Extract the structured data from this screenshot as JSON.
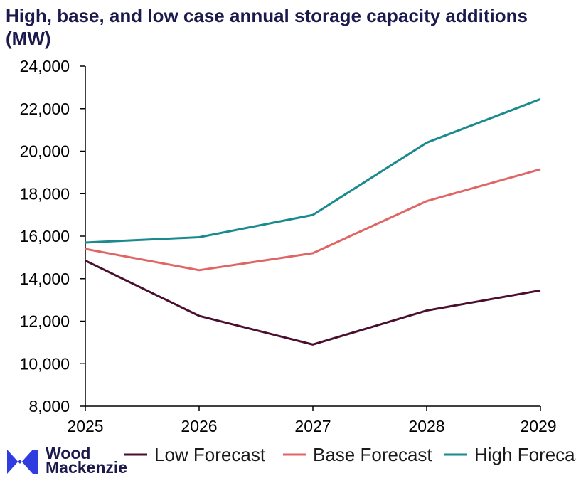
{
  "chart_data": {
    "type": "line",
    "title": "High, base, and low case annual storage capacity additions (MW)",
    "categories": [
      "2025",
      "2026",
      "2027",
      "2028",
      "2029"
    ],
    "ylim": [
      8000,
      24000
    ],
    "yticks": [
      8000,
      10000,
      12000,
      14000,
      16000,
      18000,
      20000,
      22000,
      24000
    ],
    "ytick_labels": [
      "8,000",
      "10,000",
      "12,000",
      "14,000",
      "16,000",
      "18,000",
      "20,000",
      "22,000",
      "24,000"
    ],
    "xlabel": "",
    "ylabel": "",
    "grid": false,
    "legend_position": "bottom",
    "series": [
      {
        "name": "Low Forecast",
        "color": "#4a0f2e",
        "values": [
          14850,
          12250,
          10900,
          12500,
          13450
        ]
      },
      {
        "name": "Base Forecast",
        "color": "#e06666",
        "values": [
          15400,
          14400,
          15200,
          17650,
          19150
        ]
      },
      {
        "name": "High Forecast",
        "color": "#1a8a8e",
        "values": [
          15700,
          15950,
          17000,
          20400,
          22450
        ]
      }
    ]
  },
  "logo": {
    "line1": "Wood",
    "line2": "Mackenzie",
    "color": "#2f3de0",
    "icon": "wood-mackenzie-logo-icon"
  }
}
